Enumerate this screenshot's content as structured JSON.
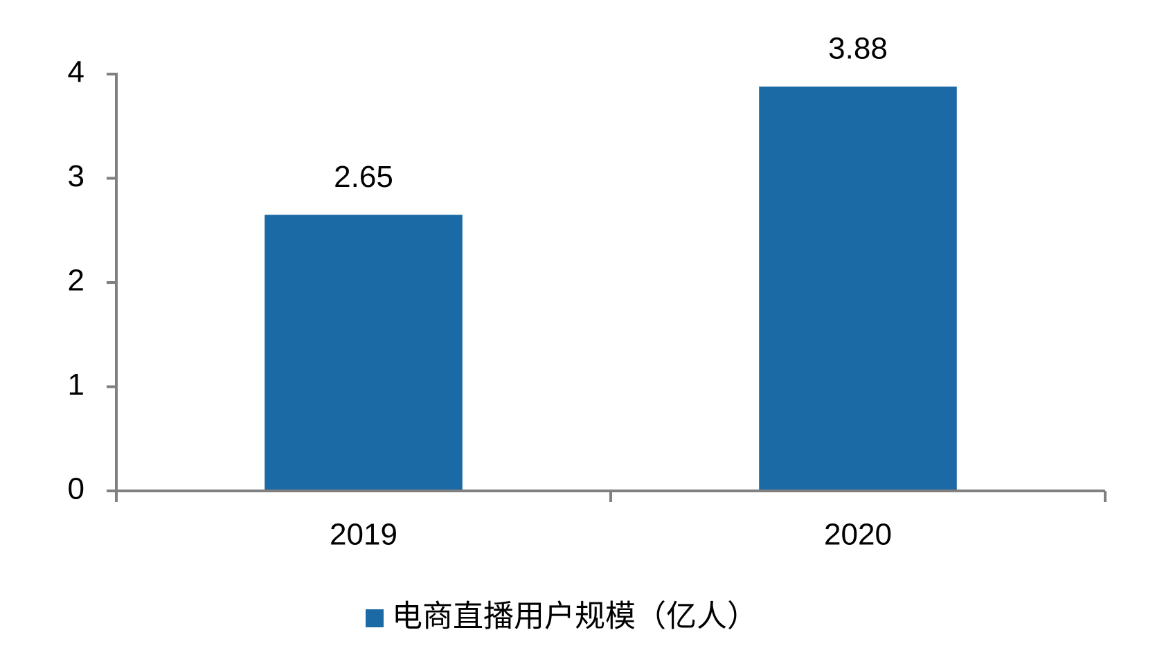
{
  "chart_data": {
    "type": "bar",
    "categories": [
      "2019",
      "2020"
    ],
    "series": [
      {
        "name": "电商直播用户规模（亿人）",
        "color": "#1b6aa5",
        "values": [
          2.65,
          3.88
        ]
      }
    ],
    "ylim": [
      0,
      4
    ],
    "yticks": [
      0,
      1,
      2,
      3,
      4
    ],
    "grid": false,
    "legend": "bottom"
  }
}
